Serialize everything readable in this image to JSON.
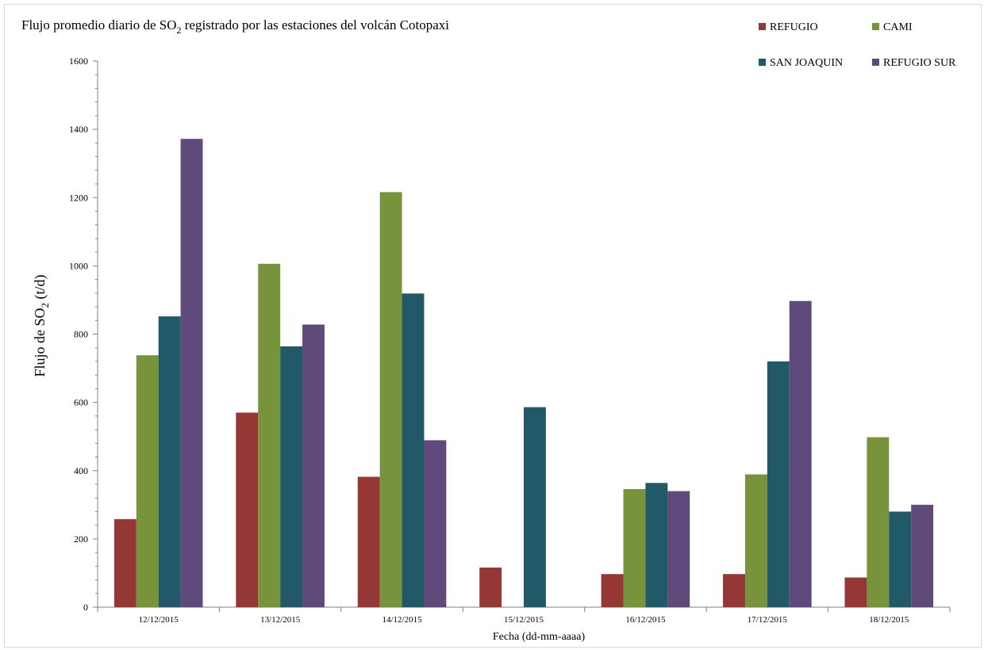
{
  "chart_data": {
    "type": "bar",
    "title": "Flujo promedio diario de SO",
    "title_sub": "2",
    "title_rest": " registrado por las estaciones del volcán Cotopaxi",
    "xlabel": "Fecha (dd-mm-aaaa)",
    "ylabel": "Flujo de SO",
    "ylabel_sub": "2",
    "ylabel_rest": " (t/d)",
    "ylim": [
      0,
      1600
    ],
    "yticks": [
      "0",
      "200",
      "400",
      "600",
      "800",
      "1000",
      "1200",
      "1400",
      "1600"
    ],
    "grid": false,
    "legend_position": "top-right",
    "categories": [
      "12/12/2015",
      "13/12/2015",
      "14/12/2015",
      "15/12/2015",
      "16/12/2015",
      "17/12/2015",
      "18/12/2015"
    ],
    "series": [
      {
        "name": "REFUGIO",
        "color": "#953735",
        "values": [
          258,
          570,
          382,
          116,
          97,
          97,
          87
        ]
      },
      {
        "name": "CAMI",
        "color": "#77933c",
        "values": [
          738,
          1006,
          1216,
          null,
          346,
          389,
          498
        ]
      },
      {
        "name": "SAN JOAQUIN",
        "color": "#215968",
        "values": [
          852,
          764,
          919,
          586,
          364,
          720,
          280
        ]
      },
      {
        "name": "REFUGIO SUR",
        "color": "#604a7b",
        "values": [
          1372,
          828,
          489,
          null,
          340,
          897,
          300
        ]
      }
    ]
  }
}
